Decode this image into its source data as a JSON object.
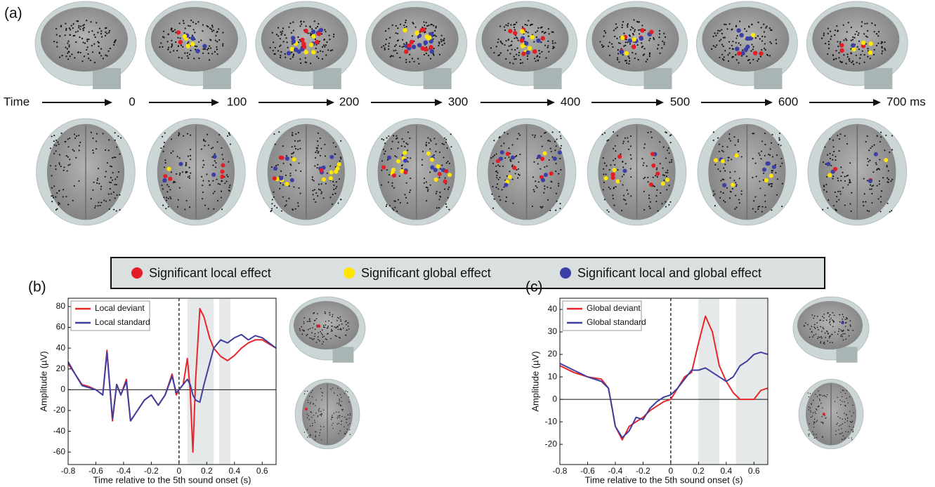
{
  "panel_a": {
    "label": "(a)",
    "time_label": "Time",
    "time_ticks": [
      "0",
      "100",
      "200",
      "300",
      "400",
      "500",
      "600",
      "700 ms"
    ]
  },
  "legend": [
    {
      "label": "Significant local effect",
      "color": "#e41e26"
    },
    {
      "label": "Significant global effect",
      "color": "#ffe600"
    },
    {
      "label": "Significant local and global effect",
      "color": "#3b3fa6"
    }
  ],
  "chart_data": [
    {
      "type": "line",
      "panel_label": "(b)",
      "ylabel": "Amplitude (µV)",
      "xlabel": "Time relative to the 5th sound onset (s)",
      "xlim": [
        -0.8,
        0.7
      ],
      "xticks": [
        -0.8,
        -0.6,
        -0.4,
        -0.2,
        0,
        0.2,
        0.4,
        0.6
      ],
      "ylim": [
        -72,
        88
      ],
      "yticks": [
        -60,
        -40,
        -20,
        0,
        20,
        40,
        60,
        80
      ],
      "shaded_intervals": [
        [
          0.06,
          0.25
        ],
        [
          0.29,
          0.37
        ]
      ],
      "x": [
        -0.8,
        -0.75,
        -0.7,
        -0.65,
        -0.6,
        -0.55,
        -0.52,
        -0.48,
        -0.45,
        -0.42,
        -0.38,
        -0.35,
        -0.3,
        -0.25,
        -0.2,
        -0.15,
        -0.1,
        -0.05,
        -0.02,
        0,
        0.03,
        0.06,
        0.08,
        0.1,
        0.12,
        0.15,
        0.18,
        0.22,
        0.25,
        0.3,
        0.35,
        0.4,
        0.45,
        0.5,
        0.55,
        0.6,
        0.65,
        0.7
      ],
      "series": [
        {
          "name": "Local deviant",
          "color": "#e8262a",
          "values": [
            25,
            15,
            5,
            3,
            0,
            -5,
            38,
            -30,
            5,
            -5,
            10,
            -30,
            -20,
            -10,
            -5,
            -15,
            -5,
            15,
            -5,
            0,
            5,
            30,
            0,
            -60,
            10,
            78,
            70,
            50,
            40,
            32,
            28,
            33,
            40,
            45,
            48,
            48,
            44,
            40
          ]
        },
        {
          "name": "Local standard",
          "color": "#3f3fa0",
          "values": [
            27,
            15,
            4,
            2,
            0,
            -5,
            36,
            -28,
            5,
            -5,
            8,
            -30,
            -20,
            -10,
            -5,
            -15,
            -5,
            13,
            -3,
            0,
            5,
            10,
            5,
            -5,
            -10,
            -12,
            5,
            25,
            40,
            48,
            45,
            50,
            53,
            48,
            52,
            50,
            45,
            40
          ]
        }
      ]
    },
    {
      "type": "line",
      "panel_label": "(c)",
      "ylabel": "Amplitude (µV)",
      "xlabel": "Time relative to the 5th sound onset (s)",
      "xlim": [
        -0.8,
        0.7
      ],
      "xticks": [
        -0.8,
        -0.6,
        -0.4,
        -0.2,
        0,
        0.2,
        0.4,
        0.6
      ],
      "ylim": [
        -29,
        45
      ],
      "yticks": [
        -20,
        -10,
        0,
        10,
        20,
        30,
        40
      ],
      "shaded_intervals": [
        [
          0.2,
          0.35
        ],
        [
          0.47,
          0.7
        ]
      ],
      "x": [
        -0.8,
        -0.7,
        -0.6,
        -0.5,
        -0.45,
        -0.42,
        -0.4,
        -0.35,
        -0.3,
        -0.25,
        -0.2,
        -0.15,
        -0.1,
        -0.05,
        0,
        0.05,
        0.1,
        0.15,
        0.2,
        0.25,
        0.3,
        0.35,
        0.4,
        0.45,
        0.5,
        0.55,
        0.6,
        0.65,
        0.7
      ],
      "series": [
        {
          "name": "Global deviant",
          "color": "#e8262a",
          "values": [
            15,
            12,
            10,
            9,
            5,
            -5,
            -12,
            -18,
            -12,
            -10,
            -8,
            -5,
            -3,
            -1,
            0,
            5,
            10,
            12,
            25,
            37,
            30,
            15,
            8,
            3,
            0,
            0,
            0,
            4,
            5
          ]
        },
        {
          "name": "Global standard",
          "color": "#3f3fa0",
          "values": [
            16,
            13,
            10,
            8,
            5,
            -5,
            -12,
            -17,
            -14,
            -8,
            -9,
            -4,
            -1,
            1,
            2,
            5,
            9,
            13,
            13,
            14,
            12,
            10,
            8,
            10,
            15,
            17,
            20,
            21,
            20
          ]
        }
      ]
    }
  ]
}
